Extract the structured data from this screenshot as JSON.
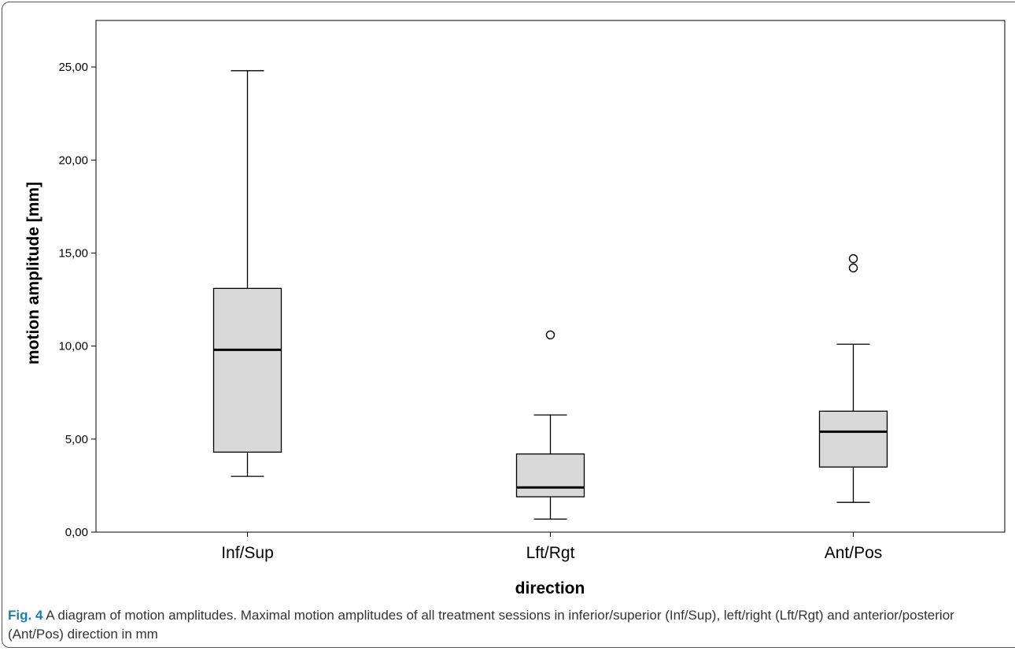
{
  "chart_data": {
    "type": "box",
    "title": "",
    "xlabel": "direction",
    "ylabel": "motion amplitude [mm]",
    "ylim": [
      0,
      27.5
    ],
    "yticks": [
      0,
      5,
      10,
      15,
      20,
      25
    ],
    "ytick_labels": [
      "0,00",
      "5,00",
      "10,00",
      "15,00",
      "20,00",
      "25,00"
    ],
    "grid": false,
    "box_fill": "#d9d9d9",
    "categories": [
      "Inf/Sup",
      "Lft/Rgt",
      "Ant/Pos"
    ],
    "boxes": [
      {
        "category": "Inf/Sup",
        "min": 3.0,
        "q1": 4.3,
        "median": 9.8,
        "q3": 13.1,
        "max": 24.8,
        "outliers": []
      },
      {
        "category": "Lft/Rgt",
        "min": 0.7,
        "q1": 1.9,
        "median": 2.4,
        "q3": 4.2,
        "max": 6.3,
        "outliers": [
          10.6
        ]
      },
      {
        "category": "Ant/Pos",
        "min": 1.6,
        "q1": 3.5,
        "median": 5.4,
        "q3": 6.5,
        "max": 10.1,
        "outliers": [
          14.2,
          14.7
        ]
      }
    ]
  },
  "caption": {
    "label": "Fig. 4",
    "text": " A diagram of motion amplitudes. Maximal motion amplitudes of all treatment sessions in inferior/superior (Inf/Sup), left/right (Lft/Rgt) and anterior/posterior (Ant/Pos) direction in mm"
  }
}
